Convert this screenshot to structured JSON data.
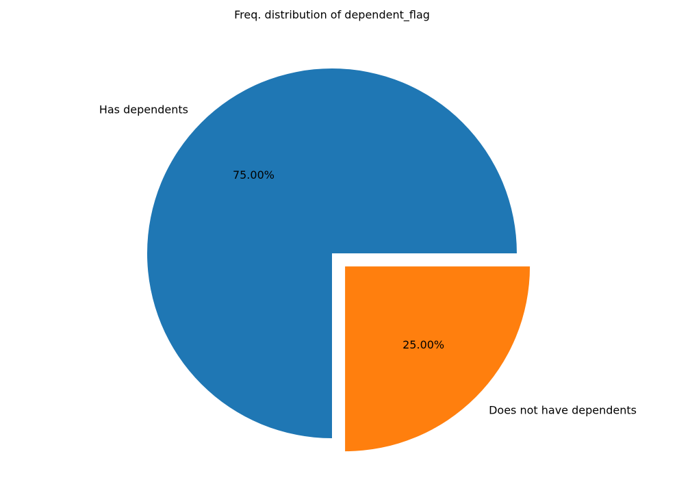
{
  "chart_data": {
    "type": "pie",
    "title": "Freq. distribution of dependent_flag",
    "slices": [
      {
        "label": "Has dependents",
        "value": 75.0,
        "pct_label": "75.00%",
        "color": "#1f77b4",
        "exploded": false
      },
      {
        "label": "Does not have dependents",
        "value": 25.0,
        "pct_label": "25.00%",
        "color": "#ff7f0e",
        "exploded": true
      }
    ],
    "start_angle_deg": 0,
    "direction": "counterclockwise",
    "legend": "none"
  }
}
